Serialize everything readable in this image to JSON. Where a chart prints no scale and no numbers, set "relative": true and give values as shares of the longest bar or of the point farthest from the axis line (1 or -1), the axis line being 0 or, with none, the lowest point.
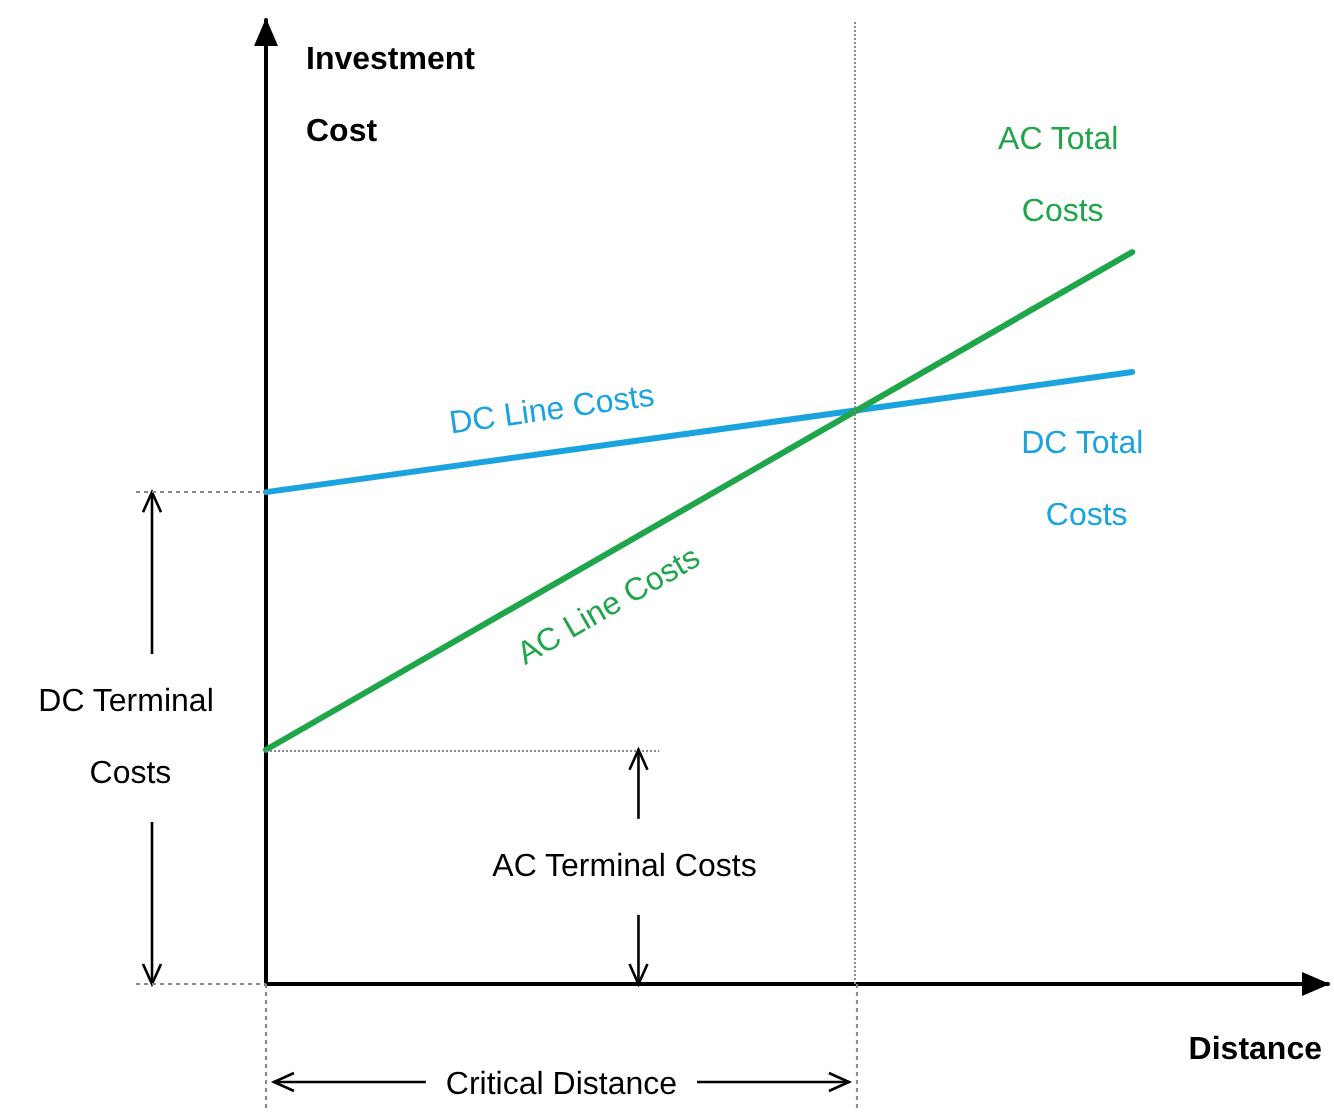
{
  "chart_data": {
    "type": "line",
    "relative": true,
    "xlabel": "Distance",
    "ylabel": "Investment Cost",
    "marker": "none",
    "categories": [
      null,
      null
    ],
    "series": [
      {
        "color": "#1ba3df",
        "values": [
          0.672,
          0.836
        ]
      },
      {
        "color": "#1fa64a",
        "values": [
          0.32,
          1
        ]
      }
    ],
    "ref_lines": [
      {
        "axis": "y",
        "value": 0.32
      }
    ],
    "annotations": [
      "DC Line Costs",
      "AC Line Costs",
      "DC Total Costs",
      "AC Total Costs",
      "DC Terminal Costs",
      "AC Terminal Costs",
      "Critical Distance"
    ]
  }
}
